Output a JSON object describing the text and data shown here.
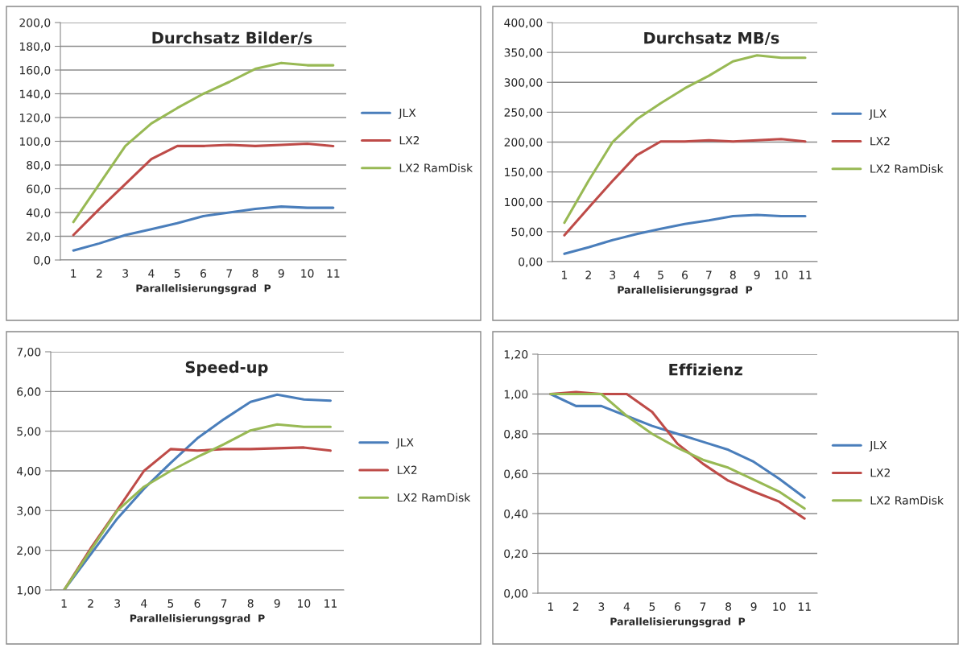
{
  "chart_data": [
    {
      "type": "line",
      "title": "Durchsatz Bilder/s",
      "xlabel": "Parallelisierungsgrad  P",
      "categories": [
        "1",
        "2",
        "3",
        "4",
        "5",
        "6",
        "7",
        "8",
        "9",
        "10",
        "11"
      ],
      "series": [
        {
          "name": "JLX",
          "color": "#4a7ebb",
          "values": [
            8,
            14,
            21,
            26,
            31,
            37,
            40,
            43,
            45,
            44,
            44
          ]
        },
        {
          "name": "LX2",
          "color": "#be4b48",
          "values": [
            21,
            43,
            64,
            85,
            96,
            96,
            97,
            96,
            97,
            98,
            96
          ]
        },
        {
          "name": "LX2 RamDisk",
          "color": "#98b954",
          "values": [
            32,
            64,
            96,
            115,
            128,
            140,
            150,
            161,
            166,
            164,
            164
          ]
        }
      ],
      "ylim": [
        0,
        200
      ],
      "yticks": [
        {
          "value": 0,
          "label": "0,0"
        },
        {
          "value": 20,
          "label": "20,0"
        },
        {
          "value": 40,
          "label": "40,0"
        },
        {
          "value": 60,
          "label": "60,0"
        },
        {
          "value": 80,
          "label": "80,0"
        },
        {
          "value": 100,
          "label": "100,0"
        },
        {
          "value": 120,
          "label": "120,0"
        },
        {
          "value": 140,
          "label": "140,0"
        },
        {
          "value": 160,
          "label": "160,0"
        },
        {
          "value": 180,
          "label": "180,0"
        },
        {
          "value": 200,
          "label": "200,0"
        }
      ],
      "grid": "y",
      "legend": "right",
      "marker": "none",
      "line_style": "solid"
    },
    {
      "type": "line",
      "title": "Durchsatz MB/s",
      "xlabel": "Parallelisierungsgrad  P",
      "categories": [
        "1",
        "2",
        "3",
        "4",
        "5",
        "6",
        "7",
        "8",
        "9",
        "10",
        "11"
      ],
      "series": [
        {
          "name": "JLX",
          "color": "#4a7ebb",
          "values": [
            13,
            24,
            36,
            46,
            55,
            63,
            69,
            76,
            78,
            76,
            76
          ]
        },
        {
          "name": "LX2",
          "color": "#be4b48",
          "values": [
            44,
            90,
            135,
            178,
            201,
            201,
            203,
            201,
            203,
            205,
            201
          ]
        },
        {
          "name": "LX2 RamDisk",
          "color": "#98b954",
          "values": [
            65,
            135,
            200,
            238,
            265,
            290,
            311,
            335,
            345,
            341,
            341
          ]
        }
      ],
      "ylim": [
        0,
        400
      ],
      "yticks": [
        {
          "value": 0,
          "label": "0,00"
        },
        {
          "value": 50,
          "label": "50,00"
        },
        {
          "value": 100,
          "label": "100,00"
        },
        {
          "value": 150,
          "label": "150,00"
        },
        {
          "value": 200,
          "label": "200,00"
        },
        {
          "value": 250,
          "label": "250,00"
        },
        {
          "value": 300,
          "label": "300,00"
        },
        {
          "value": 350,
          "label": "350,00"
        },
        {
          "value": 400,
          "label": "400,00"
        }
      ],
      "grid": "y",
      "legend": "right",
      "marker": "none",
      "line_style": "solid"
    },
    {
      "type": "line",
      "title": "Speed-up",
      "xlabel": "Parallelisierungsgrad  P",
      "categories": [
        "1",
        "2",
        "3",
        "4",
        "5",
        "6",
        "7",
        "8",
        "9",
        "10",
        "11"
      ],
      "series": [
        {
          "name": "JLX",
          "color": "#4a7ebb",
          "values": [
            1.0,
            1.9,
            2.8,
            3.55,
            4.2,
            4.82,
            5.3,
            5.74,
            5.92,
            5.8,
            5.77
          ]
        },
        {
          "name": "LX2",
          "color": "#be4b48",
          "values": [
            1.0,
            2.05,
            3.02,
            4.0,
            4.55,
            4.51,
            4.55,
            4.55,
            4.57,
            4.59,
            4.51
          ]
        },
        {
          "name": "LX2 RamDisk",
          "color": "#98b954",
          "values": [
            1.0,
            2.0,
            3.0,
            3.6,
            4.0,
            4.35,
            4.67,
            5.02,
            5.17,
            5.11,
            5.11
          ]
        }
      ],
      "ylim": [
        1,
        7
      ],
      "yticks": [
        {
          "value": 1,
          "label": "1,00"
        },
        {
          "value": 2,
          "label": "2,00"
        },
        {
          "value": 3,
          "label": "3,00"
        },
        {
          "value": 4,
          "label": "4,00"
        },
        {
          "value": 5,
          "label": "5,00"
        },
        {
          "value": 6,
          "label": "6,00"
        },
        {
          "value": 7,
          "label": "7,00"
        }
      ],
      "grid": "y",
      "legend": "right",
      "marker": "none",
      "line_style": "solid"
    },
    {
      "type": "line",
      "title": "Effizienz",
      "xlabel": "Parallelisierungsgrad  P",
      "categories": [
        "1",
        "2",
        "3",
        "4",
        "5",
        "6",
        "7",
        "8",
        "9",
        "10",
        "11"
      ],
      "series": [
        {
          "name": "JLX",
          "color": "#4a7ebb",
          "values": [
            1.0,
            0.94,
            0.94,
            0.89,
            0.84,
            0.8,
            0.76,
            0.72,
            0.66,
            0.575,
            0.48
          ]
        },
        {
          "name": "LX2",
          "color": "#be4b48",
          "values": [
            1.0,
            1.01,
            1.0,
            1.0,
            0.91,
            0.75,
            0.65,
            0.565,
            0.51,
            0.46,
            0.375
          ]
        },
        {
          "name": "LX2 RamDisk",
          "color": "#98b954",
          "values": [
            1.0,
            1.0,
            1.0,
            0.89,
            0.8,
            0.73,
            0.67,
            0.63,
            0.57,
            0.51,
            0.425
          ]
        }
      ],
      "ylim": [
        0,
        1.2
      ],
      "yticks": [
        {
          "value": 0,
          "label": "0,00"
        },
        {
          "value": 0.2,
          "label": "0,20"
        },
        {
          "value": 0.4,
          "label": "0,40"
        },
        {
          "value": 0.6,
          "label": "0,60"
        },
        {
          "value": 0.8,
          "label": "0,80"
        },
        {
          "value": 1.0,
          "label": "1,00"
        },
        {
          "value": 1.2,
          "label": "1,20"
        }
      ],
      "grid": "y",
      "legend": "right",
      "marker": "none",
      "line_style": "solid"
    }
  ]
}
